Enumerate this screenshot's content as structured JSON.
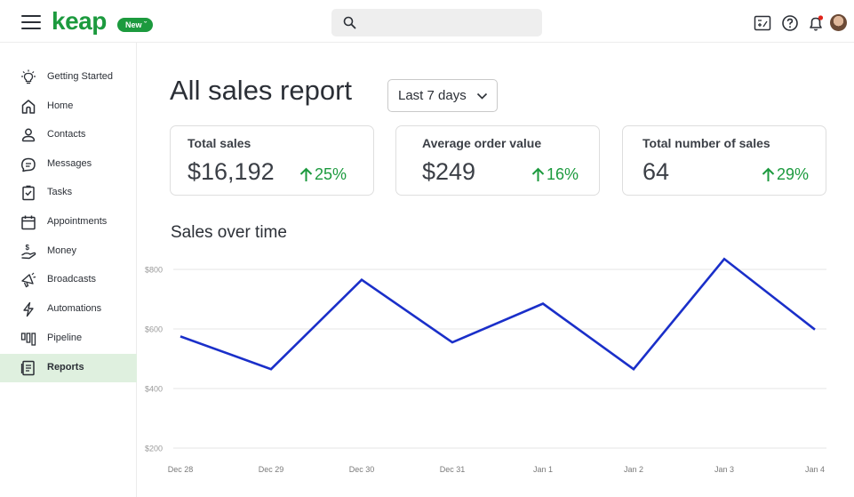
{
  "header": {
    "logo_text": "keap",
    "new_badge": "New",
    "search_placeholder": "",
    "icons": [
      "menu-icon",
      "search-icon",
      "calculator-icon",
      "help-icon",
      "notification-bell-icon",
      "user-avatar"
    ]
  },
  "sidebar": {
    "items": [
      {
        "label": "Getting Started",
        "icon": "lightbulb-icon"
      },
      {
        "label": "Home",
        "icon": "home-icon"
      },
      {
        "label": "Contacts",
        "icon": "contacts-icon"
      },
      {
        "label": "Messages",
        "icon": "messages-icon"
      },
      {
        "label": "Tasks",
        "icon": "tasks-icon"
      },
      {
        "label": "Appointments",
        "icon": "calendar-icon"
      },
      {
        "label": "Money",
        "icon": "money-icon"
      },
      {
        "label": "Broadcasts",
        "icon": "megaphone-icon"
      },
      {
        "label": "Automations",
        "icon": "lightning-icon"
      },
      {
        "label": "Pipeline",
        "icon": "pipeline-icon"
      },
      {
        "label": "Reports",
        "icon": "reports-icon"
      }
    ],
    "active": "Reports"
  },
  "main": {
    "title": "All sales report",
    "date_range": "Last 7 days",
    "kpis": [
      {
        "label": "Total sales",
        "value": "$16,192",
        "delta": "25%"
      },
      {
        "label": "Average order value",
        "value": "$249",
        "delta": "16%"
      },
      {
        "label": "Total number of sales",
        "value": "64",
        "delta": "29%"
      }
    ],
    "chart_title": "Sales over time"
  },
  "colors": {
    "brand_green": "#1c9a3e",
    "active_nav_bg": "#dff0df",
    "line": "#1a2fc9"
  },
  "chart_data": {
    "type": "line",
    "title": "Sales over time",
    "categories": [
      "Dec 28",
      "Dec 29",
      "Dec 30",
      "Dec 31",
      "Jan 1",
      "Jan 2",
      "Jan 3",
      "Jan 4"
    ],
    "series": [
      {
        "name": "Sales",
        "values": [
          575,
          465,
          765,
          555,
          685,
          465,
          835,
          598
        ]
      }
    ],
    "y_ticks": [
      "$200",
      "$400",
      "$600",
      "$800"
    ],
    "y_tick_values": [
      200,
      400,
      600,
      800
    ],
    "ylim": [
      200,
      800
    ],
    "xlabel": "",
    "ylabel": "",
    "grid": true
  }
}
